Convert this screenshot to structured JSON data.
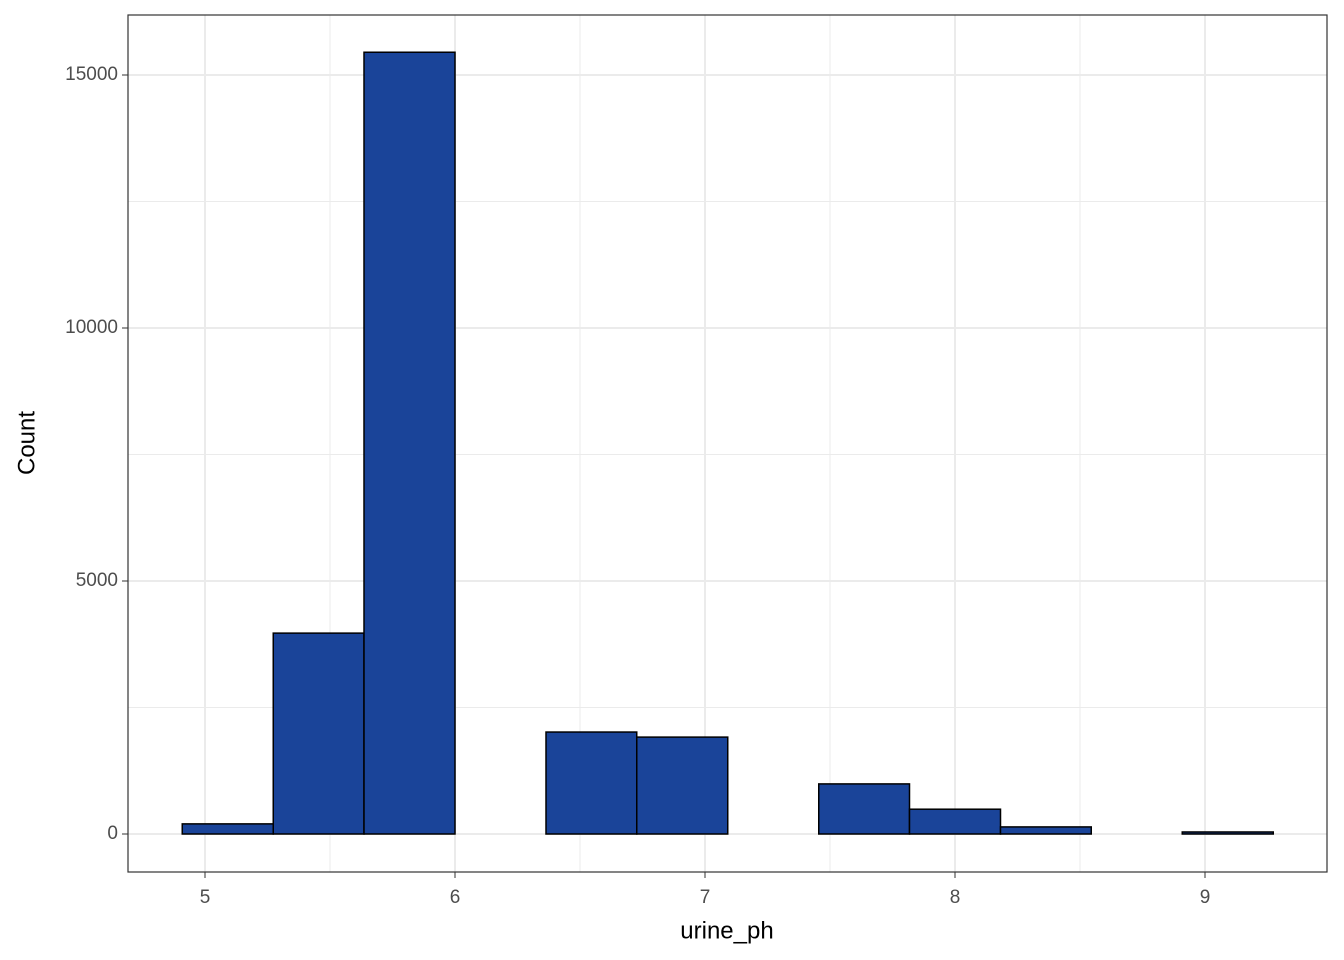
{
  "chart_data": {
    "type": "histogram",
    "x_label": "urine_ph",
    "y_label": "Count",
    "bins": [
      4.909,
      5.273,
      5.636,
      6.0,
      6.364,
      6.727,
      7.091,
      7.455,
      7.818,
      8.182,
      8.545,
      8.909,
      9.273
    ],
    "values": [
      200,
      3970,
      15450,
      0,
      2015,
      1915,
      0,
      990,
      490,
      140,
      0,
      40
    ],
    "color": "#1a4499",
    "xlim": [
      4.692,
      9.488
    ],
    "xticks": [
      5,
      6,
      7,
      8,
      9
    ],
    "x_minor_ticks": [
      5.5,
      6.5,
      7.5,
      8.5
    ],
    "ylim": [
      -751,
      16186
    ],
    "yticks": [
      0,
      5000,
      10000,
      15000
    ],
    "y_minor_ticks": [
      2500,
      7500,
      12500
    ],
    "grid": true
  }
}
